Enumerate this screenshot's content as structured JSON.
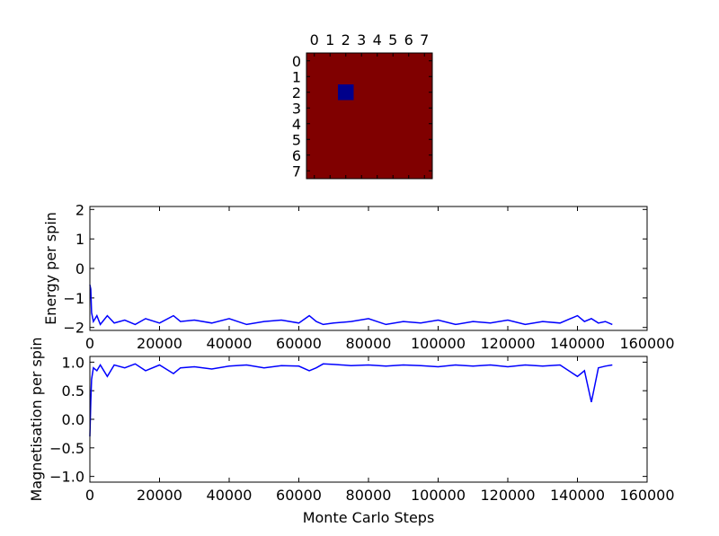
{
  "chart_data": [
    {
      "type": "heatmap",
      "title": "",
      "x_ticks": [
        "0",
        "1",
        "2",
        "3",
        "4",
        "5",
        "6",
        "7"
      ],
      "y_ticks": [
        "0",
        "1",
        "2",
        "3",
        "4",
        "5",
        "6",
        "7"
      ],
      "grid_size": [
        8,
        8
      ],
      "background_value": 1,
      "cells": [
        {
          "row": 2,
          "col": 2,
          "value": -1
        }
      ],
      "colors": {
        "positive": "#800000",
        "negative": "#00008b"
      }
    },
    {
      "type": "line",
      "ylabel": "Energy per spin",
      "xlim": [
        0,
        160000
      ],
      "ylim": [
        -2.1,
        2.1
      ],
      "x_ticks": [
        "0",
        "20000",
        "40000",
        "60000",
        "80000",
        "100000",
        "120000",
        "140000",
        "160000"
      ],
      "y_ticks": [
        "2",
        "1",
        "0",
        "−1",
        "−2"
      ],
      "series": [
        {
          "color": "#0000ff",
          "x": [
            0,
            250,
            500,
            1000,
            2000,
            3000,
            5000,
            7000,
            10000,
            13000,
            16000,
            20000,
            24000,
            26000,
            30000,
            35000,
            40000,
            45000,
            50000,
            55000,
            60000,
            63000,
            65000,
            67000,
            70000,
            75000,
            80000,
            85000,
            90000,
            95000,
            100000,
            105000,
            110000,
            115000,
            120000,
            125000,
            130000,
            135000,
            140000,
            142000,
            144000,
            146000,
            148000,
            150000
          ],
          "y": [
            -0.55,
            -0.7,
            -1.5,
            -1.8,
            -1.6,
            -1.9,
            -1.6,
            -1.85,
            -1.75,
            -1.9,
            -1.7,
            -1.85,
            -1.6,
            -1.8,
            -1.75,
            -1.85,
            -1.7,
            -1.9,
            -1.8,
            -1.75,
            -1.85,
            -1.6,
            -1.8,
            -1.9,
            -1.85,
            -1.8,
            -1.7,
            -1.9,
            -1.8,
            -1.85,
            -1.75,
            -1.9,
            -1.8,
            -1.85,
            -1.75,
            -1.9,
            -1.8,
            -1.85,
            -1.6,
            -1.8,
            -1.7,
            -1.85,
            -1.8,
            -1.9
          ]
        }
      ]
    },
    {
      "type": "line",
      "xlabel": "Monte Carlo Steps",
      "ylabel": "Magnetisation per spin",
      "xlim": [
        0,
        160000
      ],
      "ylim": [
        -1.1,
        1.1
      ],
      "x_ticks": [
        "0",
        "20000",
        "40000",
        "60000",
        "80000",
        "100000",
        "120000",
        "140000",
        "160000"
      ],
      "y_ticks": [
        "1.0",
        "0.5",
        "0.0",
        "−0.5",
        "−1.0"
      ],
      "series": [
        {
          "color": "#0000ff",
          "x": [
            0,
            250,
            500,
            1000,
            2000,
            3000,
            5000,
            7000,
            10000,
            13000,
            16000,
            20000,
            24000,
            26000,
            30000,
            35000,
            40000,
            45000,
            50000,
            55000,
            60000,
            63000,
            65000,
            67000,
            70000,
            75000,
            80000,
            85000,
            90000,
            95000,
            100000,
            105000,
            110000,
            115000,
            120000,
            125000,
            130000,
            135000,
            140000,
            142000,
            144000,
            146000,
            148000,
            150000
          ],
          "y": [
            -0.3,
            0.3,
            0.7,
            0.9,
            0.85,
            0.95,
            0.75,
            0.95,
            0.9,
            0.97,
            0.85,
            0.95,
            0.8,
            0.9,
            0.92,
            0.88,
            0.93,
            0.95,
            0.9,
            0.94,
            0.93,
            0.85,
            0.9,
            0.97,
            0.96,
            0.94,
            0.95,
            0.93,
            0.95,
            0.94,
            0.92,
            0.95,
            0.93,
            0.95,
            0.92,
            0.95,
            0.93,
            0.95,
            0.75,
            0.85,
            0.3,
            0.9,
            0.93,
            0.95
          ]
        }
      ]
    }
  ]
}
